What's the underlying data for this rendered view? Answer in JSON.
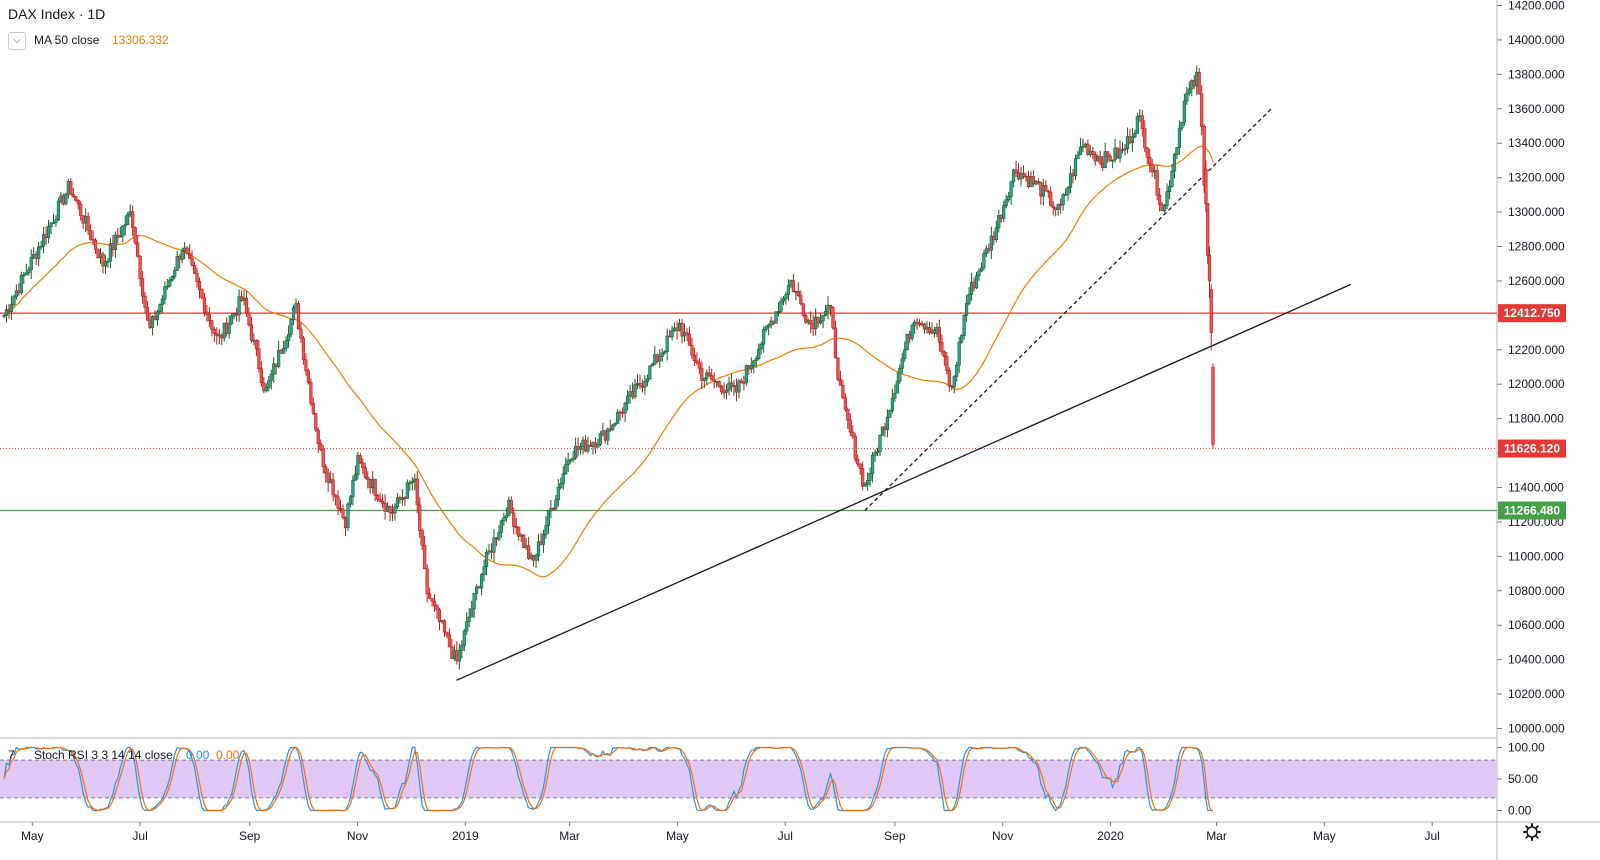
{
  "header": {
    "title": "DAX Index · 1D",
    "indicator_label": "MA 50 close",
    "indicator_value": "13306.332",
    "collapse_icon": "chevron-down-icon"
  },
  "oscillator": {
    "label": "Stoch RSI 3 3 14 14 close",
    "k_value": "0.00",
    "d_value": "0.00",
    "tick_labels": [
      "100.00",
      "50.00",
      "0.00"
    ],
    "bands": [
      80,
      20
    ]
  },
  "settings_icon": "gear-icon",
  "colors": {
    "up": "#26a69a",
    "down": "#ef5350",
    "resistance": "#e53935",
    "support": "#43a047",
    "ma": "#f57c00",
    "stoch_k": "#2196f3",
    "stoch_d": "#ff6d00",
    "stoch_band": "#e1c8f8"
  },
  "chart_data": {
    "type": "candlestick",
    "title": "DAX Index · 1D",
    "x_tick_labels": [
      "May",
      "Jul",
      "Sep",
      "Nov",
      "2019",
      "Mar",
      "May",
      "Jul",
      "Sep",
      "Nov",
      "2020",
      "Mar",
      "May",
      "Jul"
    ],
    "y_tick_labels": [
      "10000.000",
      "10200.000",
      "10400.000",
      "10600.000",
      "10800.000",
      "11000.000",
      "11200.000",
      "11400.000",
      "11600.000",
      "11800.000",
      "12000.000",
      "12200.000",
      "12400.000",
      "12600.000",
      "12800.000",
      "13000.000",
      "13200.000",
      "13400.000",
      "13600.000",
      "13800.000",
      "14000.000",
      "14200.000"
    ],
    "ylim": [
      9950,
      14200
    ],
    "price_levels": [
      {
        "label": "12412.750",
        "value": 12412.75,
        "style": "solid",
        "color": "#e53935"
      },
      {
        "label": "11626.120",
        "value": 11626.12,
        "style": "dotted",
        "color": "#e53935"
      },
      {
        "label": "11266.480",
        "value": 11266.48,
        "style": "solid",
        "color": "#43a047"
      }
    ],
    "trendlines": [
      {
        "from": [
          "2018-12-27",
          10280
        ],
        "to": [
          "2020-05-16",
          12580
        ],
        "style": "solid"
      },
      {
        "from": [
          "2019-08-15",
          11266
        ],
        "to": [
          "2020-04-01",
          13600
        ],
        "style": "dashed"
      }
    ],
    "price_anchors": [
      [
        "2018-04-15",
        12400
      ],
      [
        "2018-05-22",
        13150
      ],
      [
        "2018-06-10",
        12700
      ],
      [
        "2018-06-26",
        13000
      ],
      [
        "2018-07-06",
        12300
      ],
      [
        "2018-07-25",
        12800
      ],
      [
        "2018-08-14",
        12250
      ],
      [
        "2018-08-28",
        12500
      ],
      [
        "2018-09-10",
        11950
      ],
      [
        "2018-09-27",
        12450
      ],
      [
        "2018-10-11",
        11600
      ],
      [
        "2018-10-25",
        11200
      ],
      [
        "2018-11-01",
        11550
      ],
      [
        "2018-11-20",
        11250
      ],
      [
        "2018-12-03",
        11450
      ],
      [
        "2018-12-10",
        10800
      ],
      [
        "2018-12-27",
        10380
      ],
      [
        "2019-01-10",
        10900
      ],
      [
        "2019-01-25",
        11300
      ],
      [
        "2019-02-08",
        10950
      ],
      [
        "2019-03-01",
        11600
      ],
      [
        "2019-03-20",
        11700
      ],
      [
        "2019-04-10",
        12000
      ],
      [
        "2019-05-02",
        12350
      ],
      [
        "2019-05-15",
        12050
      ],
      [
        "2019-06-03",
        11950
      ],
      [
        "2019-06-20",
        12300
      ],
      [
        "2019-07-04",
        12600
      ],
      [
        "2019-07-15",
        12350
      ],
      [
        "2019-07-26",
        12450
      ],
      [
        "2019-08-02",
        11900
      ],
      [
        "2019-08-15",
        11400
      ],
      [
        "2019-08-27",
        11800
      ],
      [
        "2019-09-12",
        12400
      ],
      [
        "2019-09-25",
        12300
      ],
      [
        "2019-10-03",
        11950
      ],
      [
        "2019-10-12",
        12500
      ],
      [
        "2019-10-28",
        12900
      ],
      [
        "2019-11-08",
        13250
      ],
      [
        "2019-11-21",
        13150
      ],
      [
        "2019-12-03",
        13000
      ],
      [
        "2019-12-16",
        13400
      ],
      [
        "2019-12-27",
        13300
      ],
      [
        "2020-01-08",
        13350
      ],
      [
        "2020-01-17",
        13550
      ],
      [
        "2020-01-31",
        13000
      ],
      [
        "2020-02-12",
        13650
      ],
      [
        "2020-02-19",
        13780
      ],
      [
        "2020-02-21",
        13600
      ],
      [
        "2020-02-24",
        13000
      ],
      [
        "2020-02-25",
        12700
      ],
      [
        "2020-02-26",
        12600
      ],
      [
        "2020-02-27",
        12350
      ],
      [
        "2020-02-28",
        11800
      ]
    ],
    "last_candles": [
      {
        "date": "2020-02-24",
        "open": 13250,
        "high": 13300,
        "low": 13000,
        "close": 13050
      },
      {
        "date": "2020-02-25",
        "open": 13050,
        "high": 13050,
        "low": 12700,
        "close": 12750
      },
      {
        "date": "2020-02-26",
        "open": 12750,
        "high": 12800,
        "low": 12500,
        "close": 12600
      },
      {
        "date": "2020-02-27",
        "open": 12550,
        "high": 12580,
        "low": 12200,
        "close": 12300
      },
      {
        "date": "2020-02-28",
        "open": 12100,
        "high": 12120,
        "low": 11626,
        "close": 11650
      }
    ],
    "ma": {
      "label": "MA 50 close",
      "period": 50,
      "last_value": 13306.332
    },
    "oscillator_ylim": [
      0,
      100
    ]
  }
}
